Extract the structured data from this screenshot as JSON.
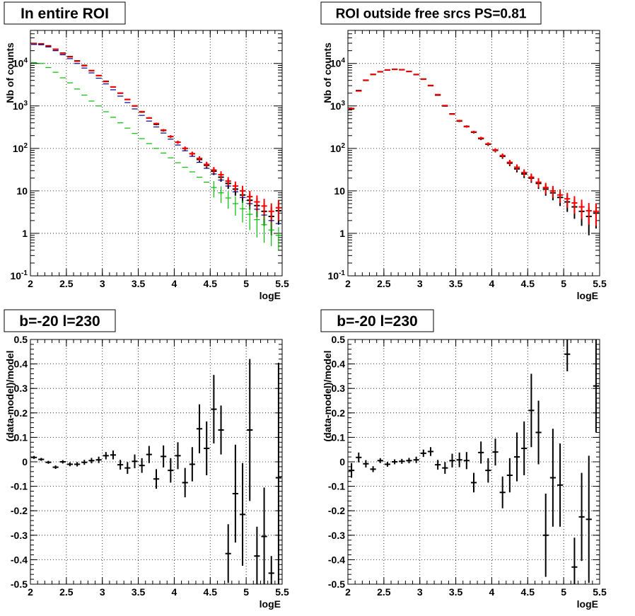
{
  "colors": {
    "data": "#000000",
    "model": "#ff0000",
    "component_blue": "#00008b",
    "component_green": "#00c000",
    "grid": "#000000"
  },
  "chart_data": [
    {
      "type": "line",
      "title": "In entire ROI",
      "xlabel": "logE",
      "ylabel": "Nb of counts",
      "xlim": [
        2,
        5.5
      ],
      "ylim": [
        0.1,
        60000
      ],
      "yscale": "log",
      "grid": true,
      "xticks": [
        "2",
        "2.5",
        "3",
        "3.5",
        "4",
        "4.5",
        "5",
        "5.5"
      ],
      "yticks": [
        "10^-1",
        "1",
        "10",
        "10^2",
        "10^3",
        "10^4"
      ],
      "series": [
        {
          "color": "black",
          "style": "errorbar",
          "x": [
            2.05,
            2.15,
            2.25,
            2.35,
            2.45,
            2.55,
            2.65,
            2.75,
            2.85,
            2.95,
            3.05,
            3.15,
            3.25,
            3.35,
            3.45,
            3.55,
            3.65,
            3.75,
            3.85,
            3.95,
            4.05,
            4.15,
            4.25,
            4.35,
            4.45,
            4.55,
            4.65,
            4.75,
            4.85,
            4.95,
            5.05,
            5.15,
            5.25,
            5.35,
            5.45
          ],
          "y": [
            29500,
            29000,
            26000,
            21500,
            17500,
            14500,
            11500,
            9000,
            6800,
            5200,
            3800,
            2800,
            2000,
            1420,
            1000,
            720,
            520,
            370,
            265,
            190,
            140,
            100,
            75,
            55,
            40,
            29,
            21,
            15,
            11,
            8,
            6,
            4.5,
            3.3,
            2.5,
            3.4
          ],
          "err": [
            170,
            170,
            160,
            150,
            130,
            120,
            105,
            95,
            80,
            70,
            60,
            50,
            45,
            38,
            32,
            27,
            23,
            19,
            16,
            14,
            12,
            10,
            8.7,
            7.4,
            6.3,
            5.4,
            4.6,
            3.9,
            3.3,
            2.8,
            2.4,
            2.1,
            1.8,
            1.6,
            1.8
          ]
        },
        {
          "color": "red",
          "style": "errorbar",
          "x": [
            2.05,
            2.15,
            2.25,
            2.35,
            2.45,
            2.55,
            2.65,
            2.75,
            2.85,
            2.95,
            3.05,
            3.15,
            3.25,
            3.35,
            3.45,
            3.55,
            3.65,
            3.75,
            3.85,
            3.95,
            4.05,
            4.15,
            4.25,
            4.35,
            4.45,
            4.55,
            4.65,
            4.75,
            4.85,
            4.95,
            5.05,
            5.15,
            5.25,
            5.35,
            5.45
          ],
          "y": [
            29000,
            28700,
            25500,
            21600,
            17200,
            14300,
            11300,
            8850,
            6750,
            5150,
            3730,
            2800,
            2000,
            1420,
            1000,
            735,
            520,
            385,
            270,
            190,
            140,
            100,
            75,
            58,
            42,
            31,
            24,
            17,
            13,
            10,
            7.3,
            5.5,
            4.4,
            3.3,
            4.0
          ],
          "err": [
            170,
            170,
            160,
            150,
            130,
            120,
            105,
            95,
            80,
            70,
            60,
            50,
            45,
            38,
            32,
            27,
            23,
            19,
            16,
            14,
            12,
            10,
            8.7,
            7.6,
            6.5,
            5.6,
            4.9,
            4.1,
            3.6,
            3.2,
            2.7,
            2.3,
            2.1,
            1.8,
            2.0
          ]
        },
        {
          "color": "blue",
          "style": "errorbar",
          "x": [
            2.05,
            2.15,
            2.25,
            2.35,
            2.45,
            2.55,
            2.65,
            2.75,
            2.85,
            2.95,
            3.05,
            3.15,
            3.25,
            3.35,
            3.45,
            3.55,
            3.65,
            3.75,
            3.85,
            3.95,
            4.05,
            4.15,
            4.25,
            4.35,
            4.45,
            4.55,
            4.65,
            4.75,
            4.85,
            4.95,
            5.05,
            5.15,
            5.25,
            5.35,
            5.45
          ],
          "y": [
            28000,
            27500,
            24500,
            20000,
            16000,
            13000,
            10000,
            7800,
            6000,
            4500,
            3300,
            2400,
            1700,
            1200,
            850,
            600,
            440,
            320,
            230,
            165,
            120,
            88,
            65,
            47,
            34,
            25,
            18,
            13,
            9.5,
            7,
            5,
            3.7,
            2.7,
            2.0,
            1.7
          ],
          "err": [
            0,
            0,
            0,
            0,
            0,
            0,
            0,
            0,
            0,
            0,
            0,
            0,
            0,
            0,
            0,
            0,
            0,
            0,
            0,
            0,
            0,
            0,
            0,
            0,
            0,
            0,
            0,
            0,
            0,
            0,
            0,
            0,
            0,
            0,
            0
          ]
        },
        {
          "color": "green",
          "style": "errorbar",
          "x": [
            2.05,
            2.15,
            2.25,
            2.35,
            2.45,
            2.55,
            2.65,
            2.75,
            2.85,
            2.95,
            3.05,
            3.15,
            3.25,
            3.35,
            3.45,
            3.55,
            3.65,
            3.75,
            3.85,
            3.95,
            4.05,
            4.15,
            4.25,
            4.35,
            4.45,
            4.55,
            4.65,
            4.75,
            4.85,
            4.95,
            5.05,
            5.15,
            5.25,
            5.35,
            5.45
          ],
          "y": [
            10500,
            10000,
            8000,
            6200,
            4600,
            3500,
            2500,
            1800,
            1300,
            1000,
            730,
            540,
            400,
            300,
            225,
            170,
            130,
            100,
            78,
            60,
            46,
            36,
            28,
            21,
            16,
            12,
            9,
            6.8,
            5,
            3.8,
            2.8,
            2.1,
            1.6,
            1.2,
            0.9
          ],
          "err": [
            0,
            0,
            0,
            0,
            0,
            0,
            0,
            0,
            0,
            0,
            0,
            0,
            0,
            0,
            0,
            0,
            0,
            0,
            0,
            0,
            0,
            0,
            0,
            0,
            0,
            5,
            3.8,
            3.0,
            2.4,
            2.0,
            1.6,
            1.3,
            1.0,
            0.7,
            0.5
          ]
        }
      ]
    },
    {
      "type": "line",
      "title": "ROI outside free srcs PS=0.81",
      "xlabel": "logE",
      "ylabel": "Nb of counts",
      "xlim": [
        2,
        5.5
      ],
      "ylim": [
        0.1,
        60000
      ],
      "yscale": "log",
      "grid": true,
      "xticks": [
        "2",
        "2.5",
        "3",
        "3.5",
        "4",
        "4.5",
        "5",
        "5.5"
      ],
      "yticks": [
        "10^-1",
        "1",
        "10",
        "10^2",
        "10^3",
        "10^4"
      ],
      "series": [
        {
          "color": "black",
          "style": "errorbar",
          "x": [
            2.05,
            2.15,
            2.25,
            2.35,
            2.45,
            2.55,
            2.65,
            2.75,
            2.85,
            2.95,
            3.05,
            3.15,
            3.25,
            3.35,
            3.45,
            3.55,
            3.65,
            3.75,
            3.85,
            3.95,
            4.05,
            4.15,
            4.25,
            4.35,
            4.45,
            4.55,
            4.65,
            4.75,
            4.85,
            4.95,
            5.05,
            5.15,
            5.25,
            5.35,
            5.45
          ],
          "y": [
            850,
            2300,
            4000,
            5500,
            6400,
            7000,
            7300,
            7100,
            6500,
            5500,
            4300,
            3000,
            1800,
            1000,
            650,
            440,
            330,
            240,
            170,
            125,
            90,
            65,
            45,
            33,
            25,
            20,
            15,
            11,
            9,
            7,
            5.5,
            4.2,
            3.3,
            2.5,
            3.0
          ],
          "err": [
            29,
            48,
            63,
            74,
            80,
            84,
            85,
            84,
            81,
            74,
            66,
            55,
            42,
            32,
            26,
            21,
            18,
            15,
            13,
            11,
            9.5,
            8,
            6.7,
            5.7,
            5,
            4.5,
            3.9,
            3.3,
            3,
            2.6,
            2.3,
            2.0,
            1.8,
            1.6,
            1.7
          ]
        },
        {
          "color": "red",
          "style": "errorbar",
          "x": [
            2.05,
            2.15,
            2.25,
            2.35,
            2.45,
            2.55,
            2.65,
            2.75,
            2.85,
            2.95,
            3.05,
            3.15,
            3.25,
            3.35,
            3.45,
            3.55,
            3.65,
            3.75,
            3.85,
            3.95,
            4.05,
            4.15,
            4.25,
            4.35,
            4.45,
            4.55,
            4.65,
            4.75,
            4.85,
            4.95,
            5.05,
            5.15,
            5.25,
            5.35,
            5.45
          ],
          "y": [
            870,
            2250,
            4050,
            5550,
            6350,
            7050,
            7250,
            7150,
            6450,
            5450,
            4250,
            3050,
            1850,
            1020,
            640,
            450,
            325,
            245,
            175,
            128,
            92,
            68,
            47,
            36,
            27,
            21,
            16,
            12,
            10,
            8,
            6.5,
            5.2,
            4.2,
            3.4,
            3.3
          ],
          "err": [
            29,
            48,
            63,
            74,
            80,
            84,
            85,
            84,
            81,
            74,
            66,
            55,
            42,
            32,
            26,
            21,
            18,
            15,
            13,
            11,
            9.5,
            8,
            6.7,
            6,
            5.2,
            4.6,
            4,
            3.5,
            3.1,
            2.8,
            2.5,
            2.3,
            2.0,
            1.8,
            1.8
          ]
        }
      ]
    },
    {
      "type": "line",
      "title": "b=-20 l=230",
      "xlabel": "logE",
      "ylabel": "(data-model)/model",
      "xlim": [
        2,
        5.5
      ],
      "ylim": [
        -0.5,
        0.5
      ],
      "grid": true,
      "xticks": [
        "2",
        "2.5",
        "3",
        "3.5",
        "4",
        "4.5",
        "5",
        "5.5"
      ],
      "yticks": [
        "-0.5",
        "-0.4",
        "-0.3",
        "-0.2",
        "-0.1",
        "0",
        "0.1",
        "0.2",
        "0.3",
        "0.4",
        "0.5"
      ],
      "series": [
        {
          "color": "black",
          "style": "errorbar",
          "x": [
            2.05,
            2.15,
            2.25,
            2.35,
            2.45,
            2.55,
            2.65,
            2.75,
            2.85,
            2.95,
            3.05,
            3.15,
            3.25,
            3.35,
            3.45,
            3.55,
            3.65,
            3.75,
            3.85,
            3.95,
            4.05,
            4.15,
            4.25,
            4.35,
            4.45,
            4.55,
            4.65,
            4.75,
            4.85,
            4.95,
            5.05,
            5.15,
            5.25,
            5.35,
            5.45
          ],
          "y": [
            0.018,
            0.01,
            -0.002,
            -0.022,
            0.0,
            -0.01,
            -0.01,
            -0.002,
            0.005,
            0.008,
            0.025,
            0.028,
            -0.012,
            -0.025,
            0.002,
            -0.015,
            0.03,
            -0.07,
            0.022,
            -0.035,
            0.025,
            -0.085,
            -0.01,
            0.135,
            0.055,
            0.215,
            0.13,
            -0.375,
            -0.13,
            -0.215,
            0.13,
            -0.385,
            -0.305,
            -0.455,
            -0.065
          ],
          "err": [
            0.006,
            0.006,
            0.006,
            0.007,
            0.007,
            0.008,
            0.009,
            0.01,
            0.011,
            0.013,
            0.015,
            0.018,
            0.02,
            0.024,
            0.028,
            0.03,
            0.035,
            0.04,
            0.045,
            0.05,
            0.055,
            0.06,
            0.07,
            0.1,
            0.11,
            0.14,
            0.1,
            0.12,
            0.2,
            0.21,
            0.29,
            0.12,
            0.2,
            0.07,
            0.47
          ]
        }
      ]
    },
    {
      "type": "line",
      "title": "b=-20 l=230",
      "xlabel": "logE",
      "ylabel": "(data-model)/model",
      "xlim": [
        2,
        5.5
      ],
      "ylim": [
        -0.5,
        0.5
      ],
      "grid": true,
      "xticks": [
        "2",
        "2.5",
        "3",
        "3.5",
        "4",
        "4.5",
        "5",
        "5.5"
      ],
      "yticks": [
        "-0.5",
        "-0.4",
        "-0.3",
        "-0.2",
        "-0.1",
        "0",
        "0.1",
        "0.2",
        "0.3",
        "0.4",
        "0.5"
      ],
      "series": [
        {
          "color": "black",
          "style": "errorbar",
          "x": [
            2.05,
            2.15,
            2.25,
            2.35,
            2.45,
            2.55,
            2.65,
            2.75,
            2.85,
            2.95,
            3.05,
            3.15,
            3.25,
            3.35,
            3.45,
            3.55,
            3.65,
            3.75,
            3.85,
            3.95,
            4.05,
            4.15,
            4.25,
            4.35,
            4.45,
            4.55,
            4.65,
            4.75,
            4.85,
            4.95,
            5.05,
            5.15,
            5.25,
            5.35,
            5.45
          ],
          "y": [
            -0.035,
            0.018,
            -0.008,
            -0.03,
            0.005,
            -0.01,
            0.0,
            0.002,
            0.005,
            0.008,
            0.035,
            0.042,
            -0.012,
            -0.025,
            0.005,
            0.008,
            0.005,
            -0.085,
            0.038,
            -0.035,
            0.04,
            -0.125,
            -0.055,
            0.02,
            0.055,
            0.21,
            0.12,
            -0.3,
            -0.065,
            -0.095,
            0.44,
            -0.43,
            -0.225,
            -0.235,
            0.31
          ],
          "err": [
            0.03,
            0.02,
            0.015,
            0.012,
            0.01,
            0.01,
            0.01,
            0.01,
            0.011,
            0.013,
            0.015,
            0.018,
            0.02,
            0.024,
            0.028,
            0.03,
            0.035,
            0.04,
            0.045,
            0.05,
            0.055,
            0.065,
            0.07,
            0.1,
            0.11,
            0.15,
            0.13,
            0.17,
            0.2,
            0.17,
            0.07,
            0.12,
            0.18,
            0.26,
            0.19
          ]
        }
      ]
    }
  ]
}
